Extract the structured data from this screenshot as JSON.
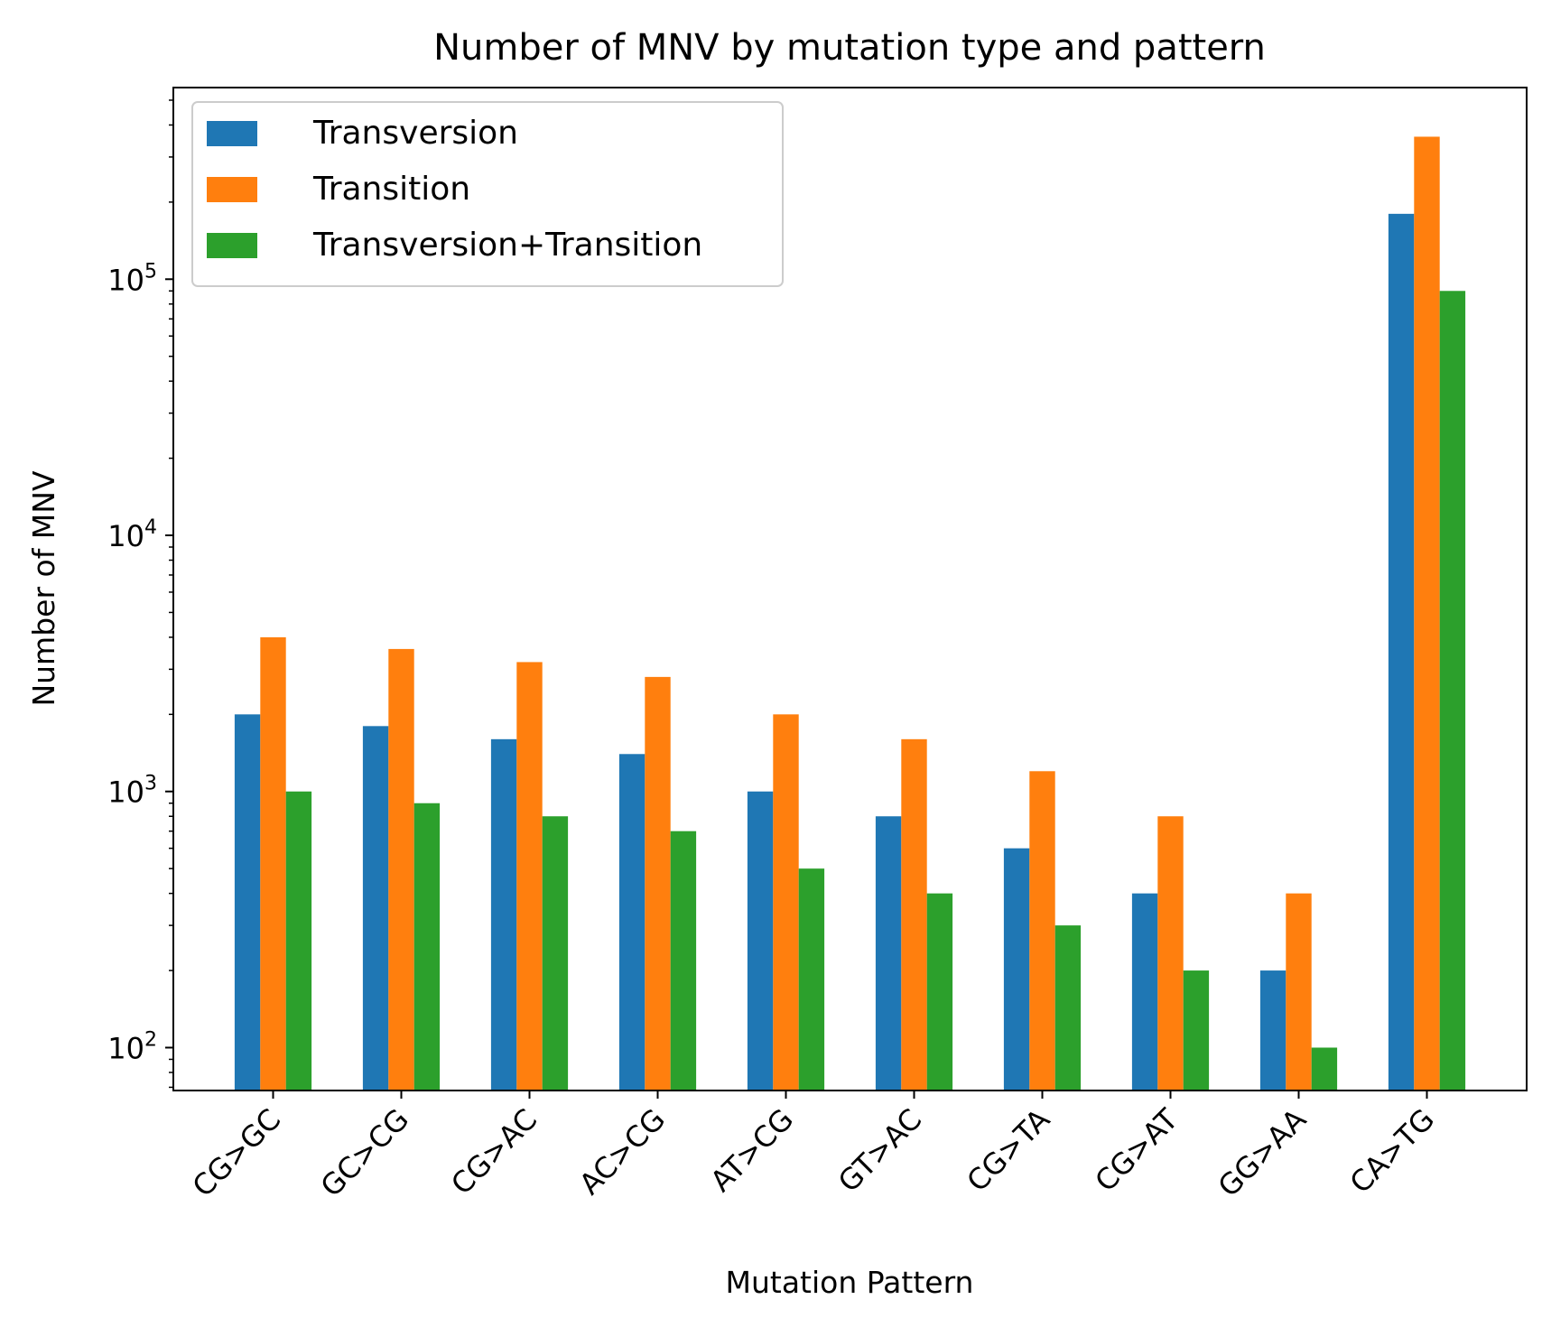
{
  "chart_data": {
    "type": "bar",
    "title": "Number of MNV by mutation type and pattern",
    "xlabel": "Mutation Pattern",
    "ylabel": "Number of MNV",
    "yscale": "log",
    "ylim": [
      68,
      560000
    ],
    "categories": [
      "CG>GC",
      "GC>CG",
      "CG>AC",
      "AC>CG",
      "AT>CG",
      "GT>AC",
      "CG>TA",
      "CG>AT",
      "GG>AA",
      "CA>TG"
    ],
    "series": [
      {
        "name": "Transversion",
        "color": "#1f77b4",
        "values": [
          2000,
          1800,
          1600,
          1400,
          1000,
          800,
          600,
          400,
          200,
          180000
        ]
      },
      {
        "name": "Transition",
        "color": "#ff7f0e",
        "values": [
          4000,
          3600,
          3200,
          2800,
          2000,
          1600,
          1200,
          800,
          400,
          360000
        ]
      },
      {
        "name": "Transversion+Transition",
        "color": "#2ca02c",
        "values": [
          1000,
          900,
          800,
          700,
          500,
          400,
          300,
          200,
          100,
          90000
        ]
      }
    ],
    "y_ticks": [
      {
        "value": 100,
        "base": "10",
        "exp": "2"
      },
      {
        "value": 1000,
        "base": "10",
        "exp": "3"
      },
      {
        "value": 10000,
        "base": "10",
        "exp": "4"
      },
      {
        "value": 100000,
        "base": "10",
        "exp": "5"
      }
    ],
    "grid": false,
    "legend": "upper-left"
  }
}
